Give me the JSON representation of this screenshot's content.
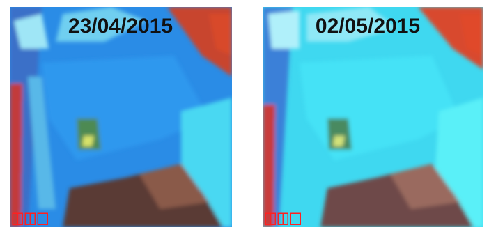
{
  "images": [
    {
      "label": "23/04/2015"
    },
    {
      "label": "02/05/2015"
    }
  ]
}
